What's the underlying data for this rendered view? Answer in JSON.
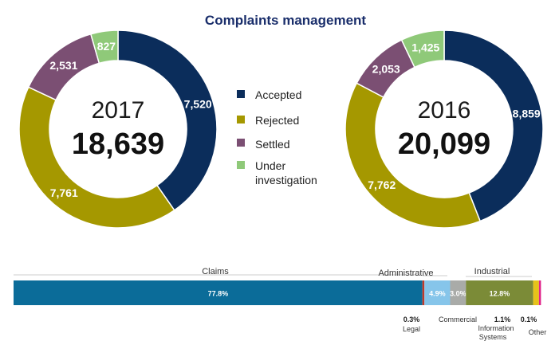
{
  "title": "Complaints management",
  "colors": {
    "accepted": "#0b2d5b",
    "rejected": "#a59800",
    "settled": "#7b4f73",
    "under_investigation": "#8fc979",
    "claims": "#0b6c99",
    "legal": "#c0392b",
    "administrative": "#86c5ea",
    "commercial": "#a9aba8",
    "industrial": "#7b8b37",
    "information_systems": "#e6c21a",
    "other": "#e0218a"
  },
  "legend": {
    "accepted": "Accepted",
    "rejected": "Rejected",
    "settled": "Settled",
    "under_investigation": "Under investigation"
  },
  "chart_data": [
    {
      "type": "pie",
      "variant": "donut",
      "year": "2017",
      "total": "18,639",
      "categories": [
        "Accepted",
        "Rejected",
        "Settled",
        "Under investigation"
      ],
      "values": [
        7520,
        7761,
        2531,
        827
      ],
      "labels": [
        "7,520",
        "7,761",
        "2,531",
        "827"
      ]
    },
    {
      "type": "pie",
      "variant": "donut",
      "year": "2016",
      "total": "20,099",
      "categories": [
        "Accepted",
        "Rejected",
        "Settled",
        "Under investigation"
      ],
      "values": [
        8859,
        7762,
        2053,
        1425
      ],
      "labels": [
        "8,859",
        "7,762",
        "2,053",
        "1,425"
      ]
    },
    {
      "type": "bar",
      "variant": "stacked-horizontal-100",
      "categories": [
        "Claims",
        "Legal",
        "Administrative",
        "Commercial",
        "Industrial",
        "Information Systems",
        "Other"
      ],
      "values": [
        77.8,
        0.3,
        4.9,
        3.0,
        12.8,
        1.1,
        0.1
      ],
      "labels": [
        "77.8%",
        "0.3%",
        "4.9%",
        "3.0%",
        "12.8%",
        "1.1%",
        "0.1%"
      ]
    }
  ],
  "bar_groups": {
    "claims": "Claims",
    "administrative": "Administrative",
    "industrial": "Industrial"
  },
  "bar_below": {
    "legal_pct": "0.3%",
    "legal_name": "Legal",
    "commercial_name": "Commercial",
    "info_sys_pct": "1.1%",
    "info_sys_name_1": "Information",
    "info_sys_name_2": "Systems",
    "other_pct": "0.1%",
    "other_name": "Other"
  }
}
